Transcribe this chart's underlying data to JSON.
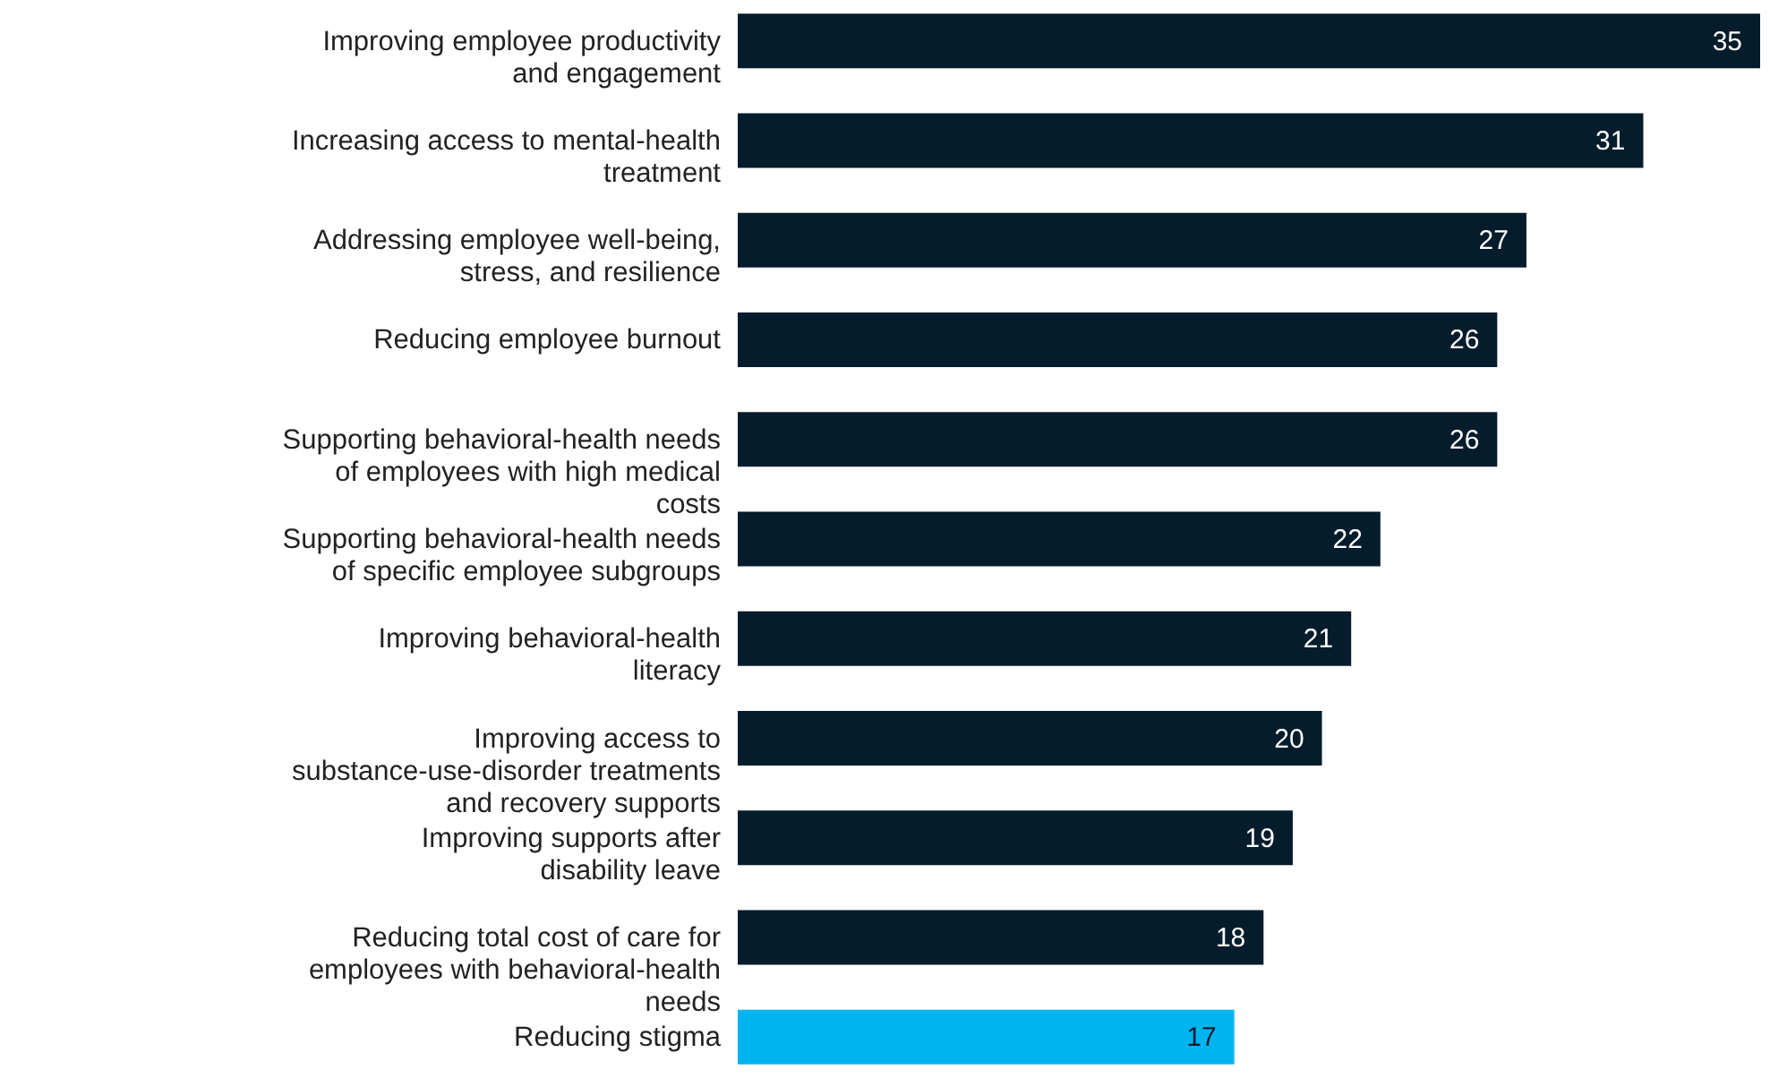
{
  "chart_data": {
    "type": "bar",
    "orientation": "horizontal",
    "data_labels": true,
    "categories": [
      "Improving employee productivity and engagement",
      "Increasing access to mental-health treatment",
      "Addressing employee well-being, stress, and resilience",
      "Reducing employee burnout",
      "Supporting behavioral-health needs of employees with high medical costs",
      "Supporting behavioral-health needs of specific employee subgroups",
      "Improving behavioral-health literacy",
      "Improving access to substance-use-disorder treatments and recovery supports",
      "Improving supports after disability leave",
      "Reducing total cost of care for employees with behavioral-health needs",
      "Reducing stigma"
    ],
    "values": [
      35,
      31,
      27,
      26,
      26,
      22,
      21,
      20,
      19,
      18,
      17
    ],
    "colors": [
      "#051c2c",
      "#051c2c",
      "#051c2c",
      "#051c2c",
      "#051c2c",
      "#051c2c",
      "#051c2c",
      "#051c2c",
      "#051c2c",
      "#051c2c",
      "#00b4f0"
    ]
  }
}
